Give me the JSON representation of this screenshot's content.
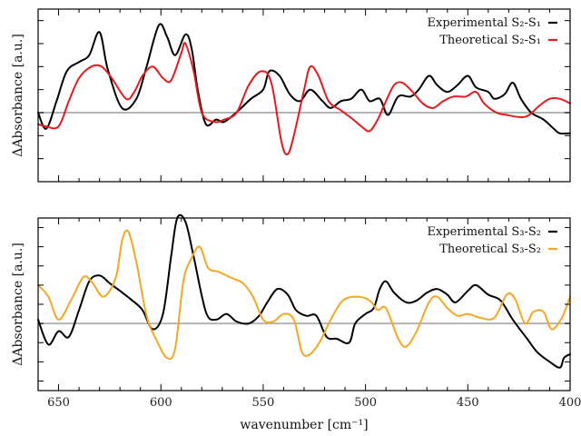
{
  "chart_data": [
    {
      "type": "line",
      "xlabel": "",
      "ylabel": "ΔAbsorbance [a.u.]",
      "xlim": [
        660,
        400
      ],
      "ylim": [
        -0.3,
        0.45
      ],
      "legend_position": "top-right",
      "xticks": [
        650,
        600,
        550,
        500,
        450,
        400
      ],
      "show_x_ticklabels": false,
      "baseline": 0,
      "series": [
        {
          "name": "Experimental S₂-S₁",
          "color": "#000000",
          "points": [
            [
              660,
              0.0
            ],
            [
              656,
              -0.07
            ],
            [
              651,
              0.05
            ],
            [
              646,
              0.18
            ],
            [
              640,
              0.22
            ],
            [
              635,
              0.25
            ],
            [
              630,
              0.35
            ],
            [
              626,
              0.19
            ],
            [
              619,
              0.02
            ],
            [
              612,
              0.06
            ],
            [
              607,
              0.2
            ],
            [
              601,
              0.38
            ],
            [
              597,
              0.33
            ],
            [
              593,
              0.25
            ],
            [
              588,
              0.34
            ],
            [
              585,
              0.28
            ],
            [
              582,
              0.1
            ],
            [
              578,
              -0.05
            ],
            [
              573,
              -0.03
            ],
            [
              569,
              -0.04
            ],
            [
              562,
              0.01
            ],
            [
              556,
              0.06
            ],
            [
              550,
              0.1
            ],
            [
              547,
              0.18
            ],
            [
              542,
              0.16
            ],
            [
              537,
              0.08
            ],
            [
              532,
              0.05
            ],
            [
              527,
              0.1
            ],
            [
              521,
              0.05
            ],
            [
              517,
              0.02
            ],
            [
              512,
              0.05
            ],
            [
              507,
              0.06
            ],
            [
              502,
              0.1
            ],
            [
              498,
              0.05
            ],
            [
              493,
              0.06
            ],
            [
              489,
              -0.01
            ],
            [
              484,
              0.07
            ],
            [
              478,
              0.07
            ],
            [
              474,
              0.1
            ],
            [
              469,
              0.16
            ],
            [
              465,
              0.12
            ],
            [
              460,
              0.09
            ],
            [
              455,
              0.12
            ],
            [
              450,
              0.16
            ],
            [
              446,
              0.11
            ],
            [
              440,
              0.09
            ],
            [
              437,
              0.06
            ],
            [
              432,
              0.08
            ],
            [
              428,
              0.13
            ],
            [
              424,
              0.06
            ],
            [
              419,
              0.0
            ],
            [
              413,
              -0.03
            ],
            [
              408,
              -0.07
            ],
            [
              405,
              -0.09
            ],
            [
              400,
              -0.09
            ]
          ]
        },
        {
          "name": "Theoretical S₂-S₁",
          "color": "#e41a1c",
          "points": [
            [
              660,
              -0.05
            ],
            [
              656,
              -0.06
            ],
            [
              650,
              -0.06
            ],
            [
              645,
              0.05
            ],
            [
              640,
              0.15
            ],
            [
              634,
              0.2
            ],
            [
              629,
              0.2
            ],
            [
              624,
              0.15
            ],
            [
              617,
              0.06
            ],
            [
              613,
              0.09
            ],
            [
              609,
              0.16
            ],
            [
              604,
              0.2
            ],
            [
              599,
              0.15
            ],
            [
              595,
              0.14
            ],
            [
              590,
              0.26
            ],
            [
              588,
              0.3
            ],
            [
              584,
              0.18
            ],
            [
              580,
              0.0
            ],
            [
              574,
              -0.04
            ],
            [
              569,
              -0.03
            ],
            [
              563,
              0.0
            ],
            [
              557,
              0.12
            ],
            [
              551,
              0.18
            ],
            [
              546,
              0.13
            ],
            [
              541,
              -0.13
            ],
            [
              538,
              -0.18
            ],
            [
              535,
              -0.1
            ],
            [
              530,
              0.1
            ],
            [
              527,
              0.2
            ],
            [
              523,
              0.16
            ],
            [
              518,
              0.05
            ],
            [
              512,
              0.01
            ],
            [
              506,
              -0.03
            ],
            [
              502,
              -0.06
            ],
            [
              498,
              -0.08
            ],
            [
              494,
              -0.03
            ],
            [
              490,
              0.05
            ],
            [
              486,
              0.12
            ],
            [
              482,
              0.13
            ],
            [
              477,
              0.09
            ],
            [
              472,
              0.04
            ],
            [
              467,
              0.02
            ],
            [
              462,
              0.05
            ],
            [
              457,
              0.07
            ],
            [
              451,
              0.07
            ],
            [
              446,
              0.09
            ],
            [
              442,
              0.04
            ],
            [
              436,
              0.0
            ],
            [
              431,
              -0.01
            ],
            [
              424,
              -0.02
            ],
            [
              420,
              -0.01
            ],
            [
              415,
              0.03
            ],
            [
              410,
              0.06
            ],
            [
              405,
              0.06
            ],
            [
              400,
              0.04
            ]
          ]
        }
      ]
    },
    {
      "type": "line",
      "xlabel": "wavenumber [cm⁻¹]",
      "ylabel": "ΔAbsorbance [a.u.]",
      "xlim": [
        660,
        400
      ],
      "ylim": [
        -0.35,
        0.55
      ],
      "legend_position": "top-right",
      "xticks": [
        650,
        600,
        550,
        500,
        450,
        400
      ],
      "show_x_ticklabels": true,
      "baseline": 0,
      "series": [
        {
          "name": "Experimental S₃-S₂",
          "color": "#000000",
          "points": [
            [
              660,
              0.02
            ],
            [
              655,
              -0.11
            ],
            [
              650,
              -0.04
            ],
            [
              645,
              -0.07
            ],
            [
              640,
              0.07
            ],
            [
              635,
              0.22
            ],
            [
              630,
              0.25
            ],
            [
              625,
              0.21
            ],
            [
              620,
              0.17
            ],
            [
              614,
              0.12
            ],
            [
              609,
              0.07
            ],
            [
              604,
              -0.03
            ],
            [
              599,
              0.05
            ],
            [
              595,
              0.35
            ],
            [
              592,
              0.55
            ],
            [
              588,
              0.53
            ],
            [
              584,
              0.35
            ],
            [
              578,
              0.06
            ],
            [
              573,
              0.02
            ],
            [
              568,
              0.05
            ],
            [
              563,
              0.01
            ],
            [
              557,
              0.0
            ],
            [
              552,
              0.04
            ],
            [
              548,
              0.11
            ],
            [
              543,
              0.18
            ],
            [
              538,
              0.15
            ],
            [
              534,
              0.07
            ],
            [
              529,
              0.04
            ],
            [
              524,
              0.04
            ],
            [
              519,
              -0.07
            ],
            [
              514,
              -0.08
            ],
            [
              508,
              -0.1
            ],
            [
              505,
              0.0
            ],
            [
              500,
              0.05
            ],
            [
              496,
              0.08
            ],
            [
              493,
              0.18
            ],
            [
              490,
              0.22
            ],
            [
              486,
              0.16
            ],
            [
              480,
              0.11
            ],
            [
              475,
              0.12
            ],
            [
              470,
              0.16
            ],
            [
              465,
              0.18
            ],
            [
              460,
              0.15
            ],
            [
              456,
              0.11
            ],
            [
              450,
              0.17
            ],
            [
              446,
              0.2
            ],
            [
              440,
              0.15
            ],
            [
              434,
              0.12
            ],
            [
              428,
              0.02
            ],
            [
              421,
              -0.08
            ],
            [
              416,
              -0.15
            ],
            [
              410,
              -0.2
            ],
            [
              405,
              -0.23
            ],
            [
              403,
              -0.18
            ],
            [
              400,
              -0.16
            ]
          ]
        },
        {
          "name": "Theoretical S₃-S₂",
          "color": "#f5a623",
          "points": [
            [
              660,
              0.2
            ],
            [
              655,
              0.14
            ],
            [
              650,
              0.02
            ],
            [
              644,
              0.12
            ],
            [
              638,
              0.24
            ],
            [
              634,
              0.22
            ],
            [
              628,
              0.14
            ],
            [
              622,
              0.24
            ],
            [
              619,
              0.43
            ],
            [
              616,
              0.48
            ],
            [
              612,
              0.32
            ],
            [
              607,
              0.04
            ],
            [
              602,
              -0.09
            ],
            [
              597,
              -0.18
            ],
            [
              593,
              -0.13
            ],
            [
              589,
              0.22
            ],
            [
              585,
              0.34
            ],
            [
              581,
              0.4
            ],
            [
              577,
              0.29
            ],
            [
              572,
              0.27
            ],
            [
              566,
              0.24
            ],
            [
              560,
              0.21
            ],
            [
              555,
              0.14
            ],
            [
              550,
              0.02
            ],
            [
              545,
              0.01
            ],
            [
              540,
              0.05
            ],
            [
              535,
              0.02
            ],
            [
              531,
              -0.15
            ],
            [
              527,
              -0.16
            ],
            [
              522,
              -0.09
            ],
            [
              517,
              0.02
            ],
            [
              511,
              0.12
            ],
            [
              504,
              0.14
            ],
            [
              498,
              0.12
            ],
            [
              494,
              0.07
            ],
            [
              490,
              0.08
            ],
            [
              484,
              -0.08
            ],
            [
              480,
              -0.12
            ],
            [
              475,
              -0.04
            ],
            [
              469,
              0.11
            ],
            [
              465,
              0.14
            ],
            [
              460,
              0.08
            ],
            [
              455,
              0.04
            ],
            [
              450,
              0.05
            ],
            [
              444,
              0.03
            ],
            [
              437,
              0.03
            ],
            [
              431,
              0.15
            ],
            [
              427,
              0.13
            ],
            [
              422,
              0.0
            ],
            [
              418,
              0.06
            ],
            [
              413,
              0.06
            ],
            [
              409,
              -0.03
            ],
            [
              404,
              0.03
            ],
            [
              400,
              0.14
            ]
          ]
        }
      ]
    }
  ]
}
